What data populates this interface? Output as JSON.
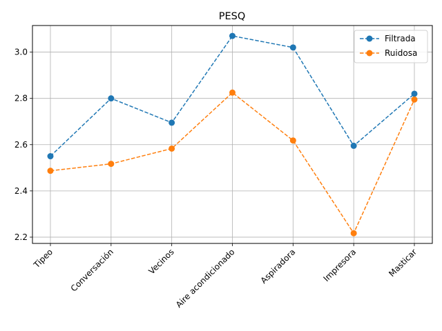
{
  "chart_data": {
    "type": "line",
    "title": "PESQ",
    "xlabel": "",
    "ylabel": "",
    "categories": [
      "Tipeo",
      "Conversación",
      "Vecinos",
      "Aire acondicionado",
      "Aspiradora",
      "Impresora",
      "Masticar"
    ],
    "series": [
      {
        "name": "Filtrada",
        "color": "#1f77b4",
        "values": [
          2.55,
          2.8,
          2.695,
          3.07,
          3.02,
          2.595,
          2.82
        ]
      },
      {
        "name": "Ruidosa",
        "color": "#ff7f0e",
        "values": [
          2.487,
          2.517,
          2.583,
          2.825,
          2.618,
          2.217,
          2.795
        ]
      }
    ],
    "ylim": [
      2.173,
      3.115
    ],
    "yticks": [
      "2.2",
      "2.4",
      "2.6",
      "2.8",
      "3.0"
    ],
    "grid": true,
    "legend_position": "top-right",
    "line_style": "dashed",
    "marker": "circle"
  }
}
